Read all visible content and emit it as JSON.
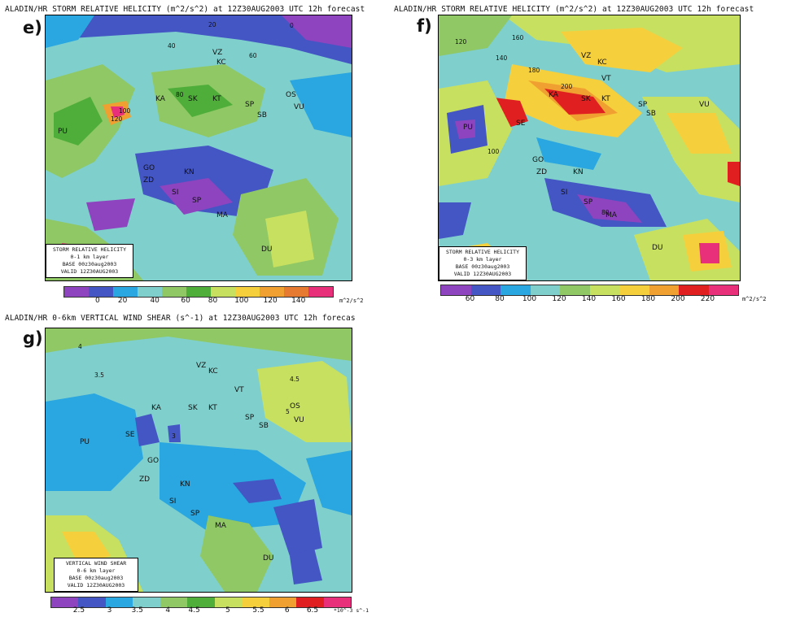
{
  "panels": {
    "e": {
      "letter": "e)",
      "title": "ALADIN/HR STORM RELATIVE HELICITY (m^2/s^2) at 12Z30AUG2003 UTC 12h forecast",
      "info": [
        "STORM RELATIVE HELICITY",
        "0-1 km layer",
        "BASE 00z30aug2003",
        "VALID 12Z30AUG2003"
      ],
      "legend_colors": [
        "#8e44bf",
        "#4455c4",
        "#2aa6e0",
        "#7fd0cc",
        "#8fc865",
        "#4fae3a",
        "#c8e060",
        "#f6cf3c",
        "#f0a030",
        "#e67a30",
        "#e8307a"
      ],
      "legend_ticks": [
        "0",
        "20",
        "40",
        "60",
        "80",
        "100",
        "120",
        "140"
      ],
      "unit": "m^2/s^2",
      "contour_labels": [
        "20",
        "40",
        "60",
        "80",
        "100",
        "120",
        "0"
      ],
      "cities": [
        "KC",
        "VZ",
        "KA",
        "SK",
        "KT",
        "OS",
        "VU",
        "SP",
        "SB",
        "PU",
        "GO",
        "ZD",
        "KN",
        "SI",
        "SP",
        "MA",
        "DU"
      ]
    },
    "f": {
      "letter": "f)",
      "title": "ALADIN/HR STORM RELATIVE HELICITY (m^2/s^2) at 12Z30AUG2003 UTC 12h forecast",
      "info": [
        "STORM RELATIVE HELICITY",
        "0-3 km layer",
        "BASE 00z30aug2003",
        "VALID 12Z30AUG2003"
      ],
      "legend_colors": [
        "#8e44bf",
        "#4455c4",
        "#2aa6e0",
        "#7fd0cc",
        "#8fc865",
        "#c8e060",
        "#f6cf3c",
        "#f0a030",
        "#e02020",
        "#e8307a"
      ],
      "legend_ticks": [
        "60",
        "80",
        "100",
        "120",
        "140",
        "160",
        "180",
        "200",
        "220"
      ],
      "unit": "m^2/s^2",
      "contour_labels": [
        "120",
        "140",
        "160",
        "180",
        "200",
        "100",
        "80"
      ],
      "cities": [
        "VZ",
        "KC",
        "VT",
        "KA",
        "SK",
        "KT",
        "SP",
        "SB",
        "VU",
        "PU",
        "SE",
        "GO",
        "ZD",
        "KN",
        "SI",
        "SP",
        "MA",
        "DU"
      ]
    },
    "g": {
      "letter": "g)",
      "title": "ALADIN/HR 0-6km VERTICAL WIND SHEAR (s^-1) at 12Z30AUG2003 UTC 12h forecas",
      "info": [
        "VERTICAL WIND SHEAR",
        "0-6 km layer",
        "BASE 00z30aug2003",
        "VALID 12Z30AUG2003"
      ],
      "legend_colors": [
        "#8e44bf",
        "#4455c4",
        "#2aa6e0",
        "#7fd0cc",
        "#8fc865",
        "#4fae3a",
        "#c8e060",
        "#f6cf3c",
        "#f0a030",
        "#e02020",
        "#e8307a"
      ],
      "legend_ticks": [
        "2.5",
        "3",
        "3.5",
        "4",
        "4.5",
        "5",
        "5.5",
        "6",
        "6.5"
      ],
      "unit": "*10^-3 s^-1",
      "contour_labels": [
        "3",
        "3.5",
        "4",
        "4.5",
        "5"
      ],
      "cities": [
        "VZ",
        "KC",
        "VT",
        "OS",
        "KA",
        "SK",
        "KT",
        "SP",
        "SB",
        "VU",
        "PU",
        "SE",
        "GO",
        "ZD",
        "KN",
        "SI",
        "SP",
        "MA",
        "DU"
      ]
    }
  }
}
